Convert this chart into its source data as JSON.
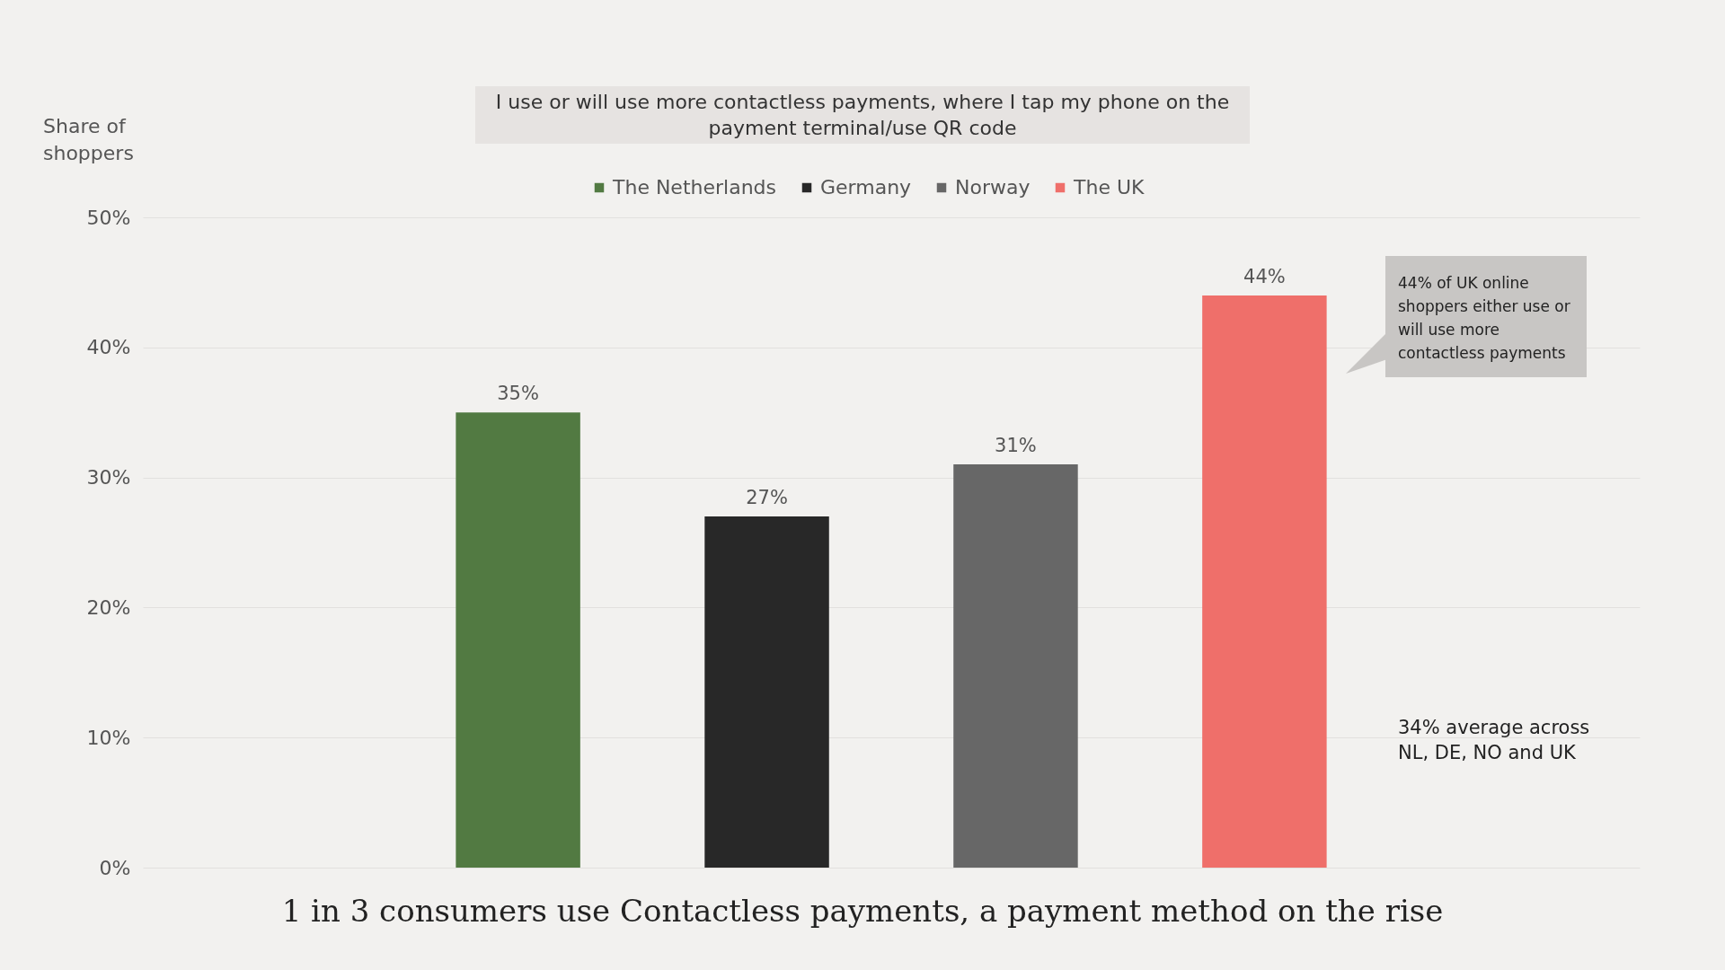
{
  "chart_data": {
    "type": "bar",
    "subtitle": "I use or will use more contactless payments, where I tap my phone on the payment terminal/use QR code",
    "title": "1 in 3 consumers use Contactless payments, a payment method on the rise",
    "ylabel": "Share of shoppers",
    "categories": [
      null
    ],
    "series": [
      {
        "name": "The Netherlands",
        "color": "#527a42",
        "values": [
          35
        ],
        "value_labels": [
          "35%"
        ]
      },
      {
        "name": "Germany",
        "color": "#282828",
        "values": [
          27
        ],
        "value_labels": [
          "27%"
        ]
      },
      {
        "name": "Norway",
        "color": "#676767",
        "values": [
          31
        ],
        "value_labels": [
          "31%"
        ]
      },
      {
        "name": "The UK",
        "color": "#ef6f6a",
        "values": [
          44
        ],
        "value_labels": [
          "44%"
        ]
      }
    ],
    "ylim": [
      0,
      50
    ],
    "yticks": [
      {
        "value": 0,
        "label": "0%"
      },
      {
        "value": 10,
        "label": "10%"
      },
      {
        "value": 20,
        "label": "20%"
      },
      {
        "value": 30,
        "label": "30%"
      },
      {
        "value": 40,
        "label": "40%"
      },
      {
        "value": 50,
        "label": "50%"
      }
    ],
    "grid": "y",
    "legend": "top",
    "tick_labels": "y",
    "annotations": [
      "44% of UK online shoppers either use or will use more contactless payments",
      "34% average across NL, DE, NO and UK"
    ]
  }
}
